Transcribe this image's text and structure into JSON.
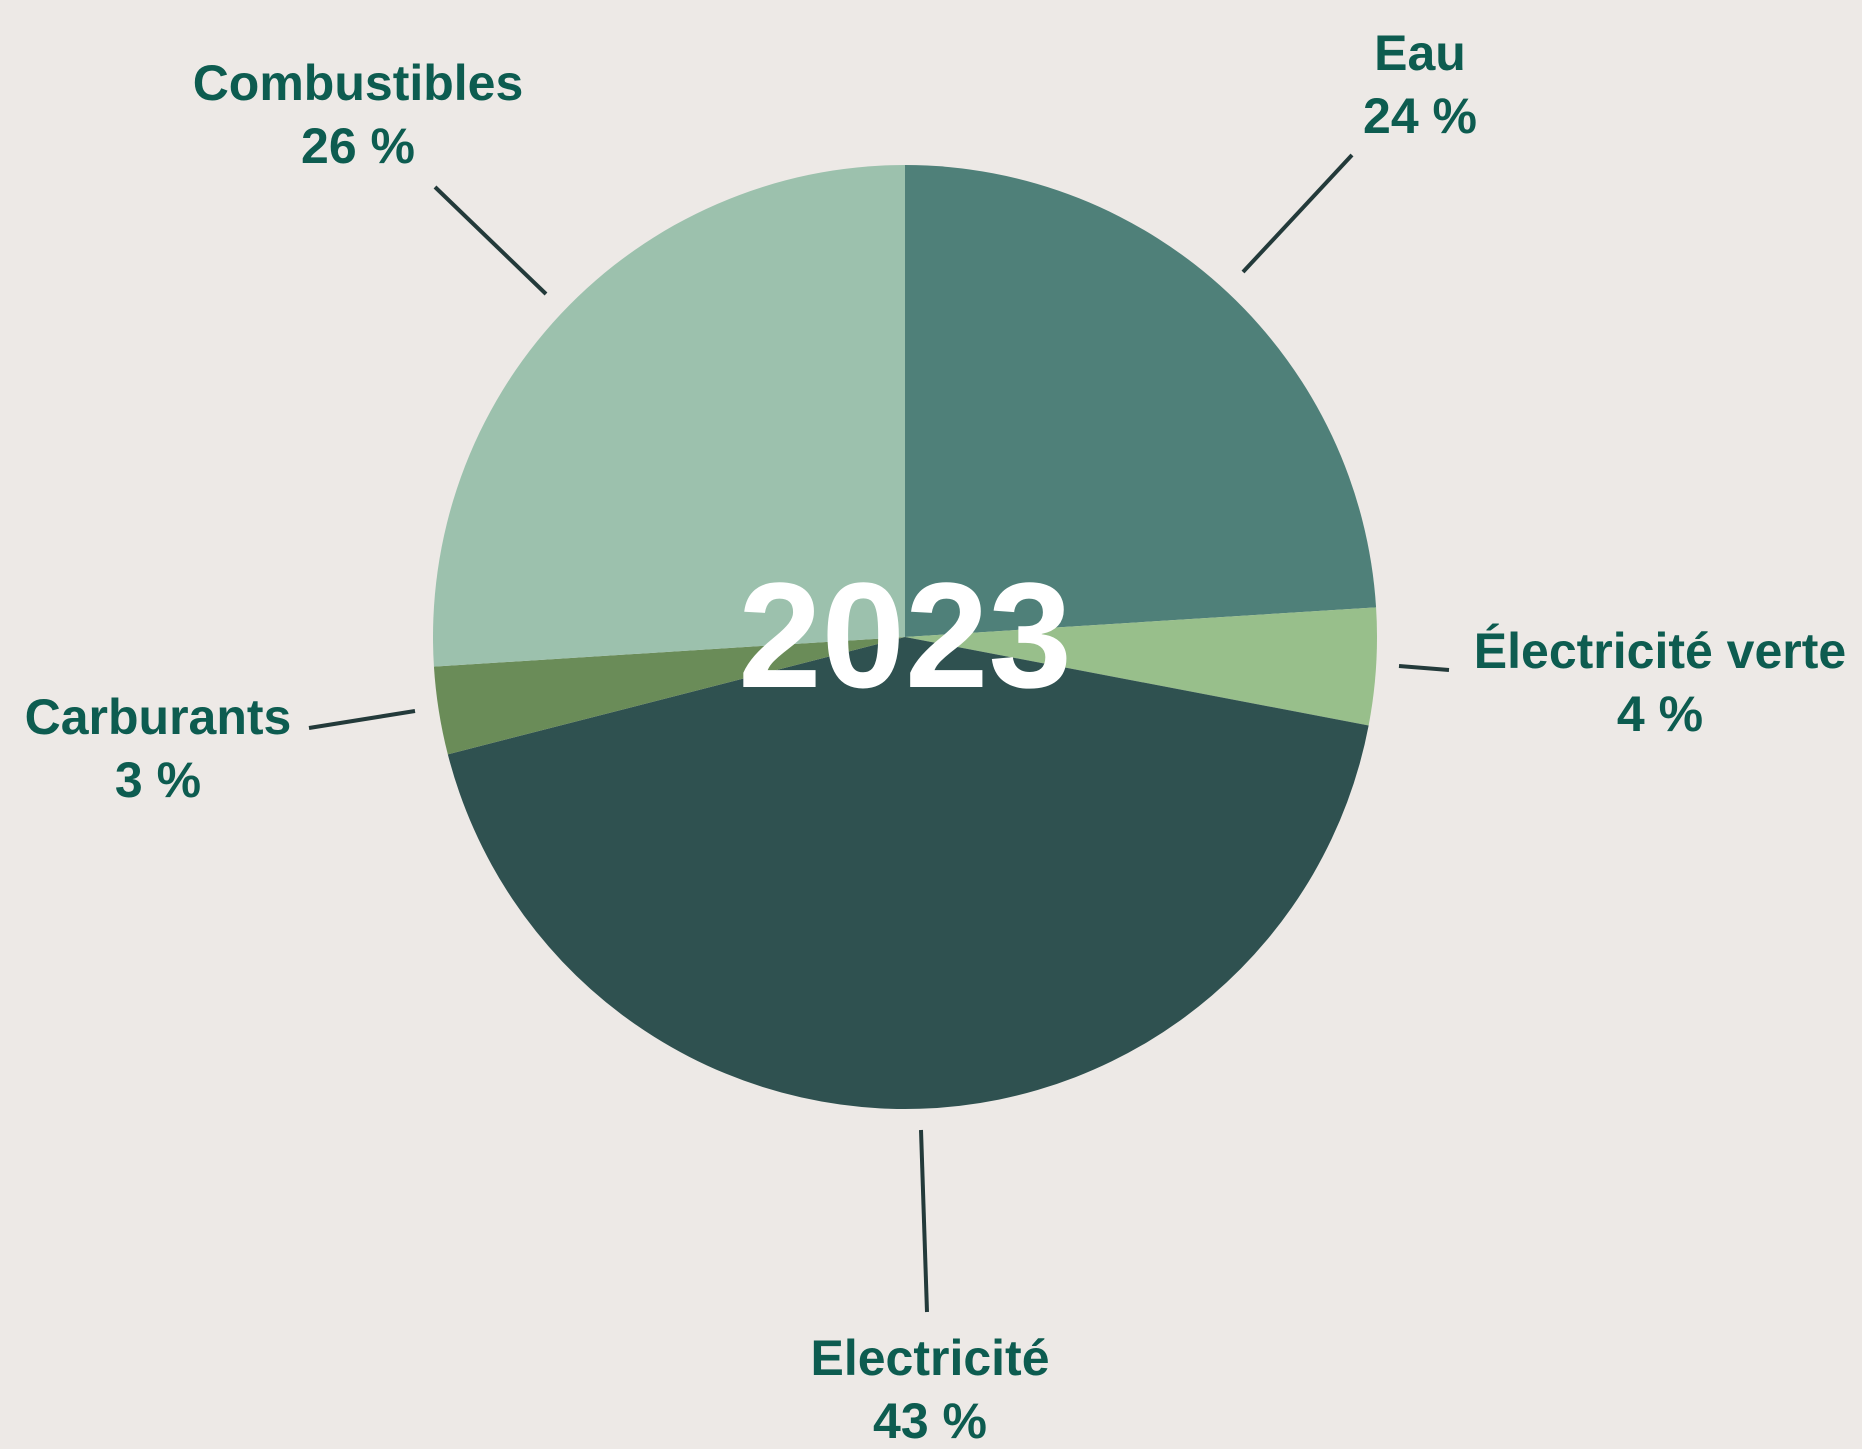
{
  "chart_data": {
    "type": "pie",
    "center_label": "2023",
    "slices": [
      {
        "label": "Eau",
        "value": 24,
        "value_text": "24 %",
        "color": "#4f8079"
      },
      {
        "label": "Électricité verte",
        "value": 4,
        "value_text": "4 %",
        "color": "#98bf8b"
      },
      {
        "label": "Electricité",
        "value": 43,
        "value_text": "43 %",
        "color": "#2f5150"
      },
      {
        "label": "Carburants",
        "value": 3,
        "value_text": "3 %",
        "color": "#6a8c58"
      },
      {
        "label": "Combustibles",
        "value": 26,
        "value_text": "26 %",
        "color": "#9cc1ad"
      }
    ]
  },
  "colors": {
    "background": "#ede9e6",
    "label_text": "#0d5c50",
    "leader_line": "#233a3a",
    "center_text": "#ffffff"
  }
}
